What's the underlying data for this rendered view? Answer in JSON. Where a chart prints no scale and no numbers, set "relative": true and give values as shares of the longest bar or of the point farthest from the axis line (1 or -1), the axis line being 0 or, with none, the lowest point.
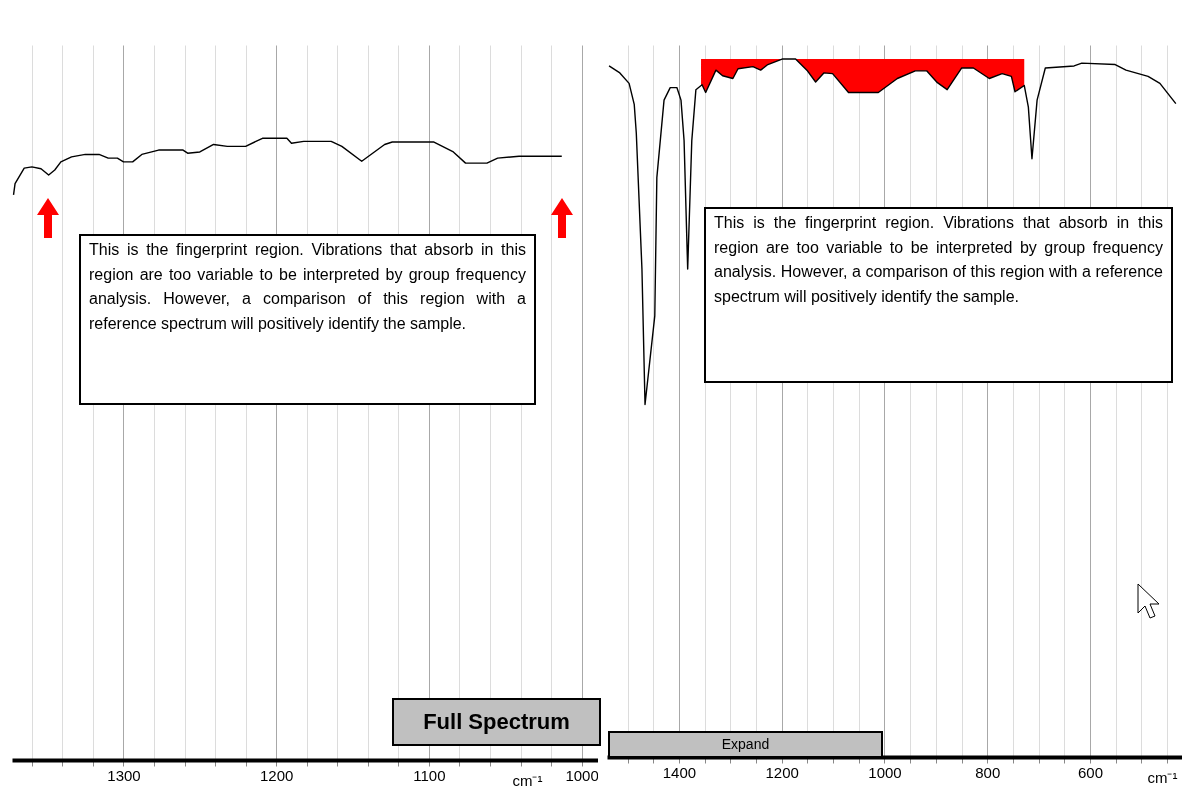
{
  "chart_data": [
    {
      "type": "line",
      "relative": true,
      "xlabel": "cm⁻¹",
      "xlim": [
        1373,
        986
      ],
      "grid": "x",
      "xticks": [
        {
          "value": 1360,
          "label": null
        },
        {
          "value": 1340,
          "label": null
        },
        {
          "value": 1320,
          "label": null
        },
        1300,
        {
          "value": 1280,
          "label": null
        },
        {
          "value": 1260,
          "label": null
        },
        {
          "value": 1240,
          "label": null
        },
        {
          "value": 1220,
          "label": null
        },
        1200,
        {
          "value": 1180,
          "label": null
        },
        {
          "value": 1160,
          "label": null
        },
        {
          "value": 1140,
          "label": null
        },
        {
          "value": 1120,
          "label": null
        },
        1100,
        {
          "value": 1080,
          "label": null
        },
        {
          "value": 1060,
          "label": null
        },
        {
          "value": 1040,
          "label": null
        },
        {
          "value": 1020,
          "label": null
        },
        1000
      ],
      "annotations": [
        "This is the fingerprint region. Vibrations that absorb in this region are too variable to be interpreted by group frequency analysis. However, a comparison of this region with a reference spectrum will positively identify the sample.",
        "Full Spectrum"
      ],
      "series": [
        {
          "color": "#000000",
          "x": [
            1372,
            1371,
            1365,
            1360,
            1354,
            1349,
            1345,
            1341,
            1334,
            1325,
            1316,
            1310,
            1304,
            1300,
            1294,
            1288,
            1277,
            1261,
            1258,
            1250,
            1241,
            1232,
            1220,
            1209,
            1193,
            1190,
            1182,
            1164,
            1157,
            1144,
            1129,
            1124,
            1097,
            1084,
            1076,
            1062,
            1055,
            1041,
            1013
          ],
          "values": [
            0.909,
            0.927,
            0.952,
            0.954,
            0.951,
            0.941,
            0.949,
            0.962,
            0.97,
            0.974,
            0.974,
            0.968,
            0.968,
            0.962,
            0.962,
            0.974,
            0.981,
            0.981,
            0.976,
            0.978,
            0.99,
            0.987,
            0.987,
            1,
            1,
            0.992,
            0.995,
            0.995,
            0.987,
            0.963,
            0.99,
            0.994,
            0.994,
            0.978,
            0.96,
            0.96,
            0.968,
            0.971,
            0.971
          ]
        }
      ]
    },
    {
      "type": "line",
      "relative": true,
      "xlabel": "cm⁻¹",
      "xlim": [
        1540,
        421
      ],
      "grid": "x",
      "xticks": [
        {
          "value": 1500,
          "label": null
        },
        {
          "value": 1450,
          "label": null
        },
        1400,
        {
          "value": 1350,
          "label": null
        },
        {
          "value": 1300,
          "label": null
        },
        {
          "value": 1250,
          "label": null
        },
        1200,
        {
          "value": 1150,
          "label": null
        },
        {
          "value": 1100,
          "label": null
        },
        {
          "value": 1050,
          "label": null
        },
        1000,
        {
          "value": 950,
          "label": null
        },
        {
          "value": 900,
          "label": null
        },
        {
          "value": 850,
          "label": null
        },
        800,
        {
          "value": 750,
          "label": null
        },
        {
          "value": 700,
          "label": null
        },
        {
          "value": 650,
          "label": null
        },
        600,
        {
          "value": 550,
          "label": null
        },
        {
          "value": 500,
          "label": null
        },
        {
          "value": 450,
          "label": null
        }
      ],
      "annotations": [
        "This is the fingerprint region. Vibrations that absorb in this region are too variable to be interpreted by group frequency analysis. However, a comparison of this region with a reference spectrum will positively identify the sample.",
        "Expand"
      ],
      "series": [
        {
          "type": "area",
          "color": "#ff0000",
          "x": [
            1357,
            1355,
            1348,
            1328,
            1315,
            1295,
            1285,
            1256,
            1241,
            1227,
            1198,
            1173,
            1151,
            1134,
            1118,
            1101,
            1070,
            1047,
            1012,
            975,
            940,
            918,
            897,
            878,
            850,
            827,
            796,
            771,
            753,
            746,
            728
          ],
          "values": [
            1,
            1,
            1,
            1,
            1,
            1,
            1,
            1,
            1,
            1,
            1,
            1,
            1,
            1,
            1,
            1,
            1,
            1,
            1,
            1,
            1,
            1,
            1,
            1,
            1,
            1,
            1,
            1,
            1,
            1,
            1
          ]
        },
        {
          "color": "#000000",
          "x": [
            1536,
            1515,
            1497,
            1487,
            1483,
            1472,
            1466,
            1447,
            1443,
            1429,
            1417,
            1404,
            1396,
            1390,
            1383,
            1375,
            1367,
            1355,
            1348,
            1328,
            1315,
            1295,
            1285,
            1256,
            1241,
            1227,
            1198,
            1173,
            1151,
            1134,
            1118,
            1101,
            1070,
            1047,
            1012,
            975,
            940,
            918,
            897,
            878,
            850,
            827,
            796,
            771,
            753,
            746,
            728,
            720,
            713,
            703,
            687,
            631,
            616,
            551,
            530,
            487,
            464,
            433
          ],
          "values": [
            0.99,
            0.98,
            0.965,
            0.935,
            0.894,
            0.699,
            0.505,
            0.632,
            0.83,
            0.941,
            0.959,
            0.959,
            0.941,
            0.883,
            0.699,
            0.883,
            0.956,
            0.963,
            0.952,
            0.984,
            0.976,
            0.972,
            0.986,
            0.989,
            0.984,
            0.992,
            1,
            1,
            0.984,
            0.967,
            0.98,
            0.979,
            0.952,
            0.952,
            0.952,
            0.972,
            0.983,
            0.983,
            0.966,
            0.956,
            0.987,
            0.987,
            0.972,
            0.979,
            0.975,
            0.953,
            0.962,
            0.931,
            0.857,
            0.941,
            0.987,
            0.99,
            0.994,
            0.992,
            0.984,
            0.975,
            0.965,
            0.936
          ]
        }
      ]
    }
  ]
}
